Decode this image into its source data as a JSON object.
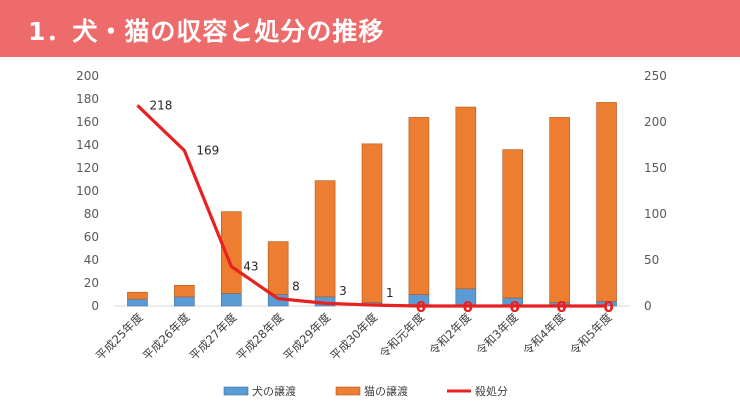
{
  "slide": {
    "title": "1．犬・猫の収容と処分の推移"
  },
  "colors": {
    "title_bar": "#ee6b6b",
    "dog": "#5b9bd5",
    "cat": "#ed7d31",
    "kill": "#e8201f"
  },
  "chart_data": {
    "type": "bar",
    "stacked": true,
    "categories": [
      "平成25年度",
      "平成26年度",
      "平成27年度",
      "平成28年度",
      "平成29年度",
      "平成30年度",
      "令和元年度",
      "令和2年度",
      "令和3年度",
      "令和4年度",
      "令和5年度"
    ],
    "series": [
      {
        "name": "犬の譲渡",
        "type": "bar",
        "axis": "left",
        "color": "#5b9bd5",
        "values": [
          6,
          8,
          11,
          10,
          8,
          3,
          10,
          15,
          7,
          3,
          4
        ]
      },
      {
        "name": "猫の譲渡",
        "type": "bar",
        "axis": "left",
        "color": "#ed7d31",
        "values": [
          6,
          10,
          71,
          46,
          101,
          138,
          154,
          158,
          129,
          161,
          173
        ]
      },
      {
        "name": "殺処分",
        "type": "line",
        "axis": "right",
        "color": "#e8201f",
        "values": [
          218,
          169,
          43,
          8,
          3,
          1,
          0,
          0,
          0,
          0,
          0
        ]
      }
    ],
    "line_labels": [
      "218",
      "169",
      "43",
      "8",
      "3",
      "1",
      "0",
      "0",
      "0",
      "0",
      "0"
    ],
    "y_left": {
      "min": 0,
      "max": 200,
      "ticks": [
        "0",
        "20",
        "40",
        "60",
        "80",
        "100",
        "120",
        "140",
        "160",
        "180",
        "200"
      ]
    },
    "y_right": {
      "min": 0,
      "max": 250,
      "ticks": [
        "0",
        "50",
        "100",
        "150",
        "200",
        "250"
      ]
    },
    "legend_position": "bottom",
    "grid": false
  }
}
